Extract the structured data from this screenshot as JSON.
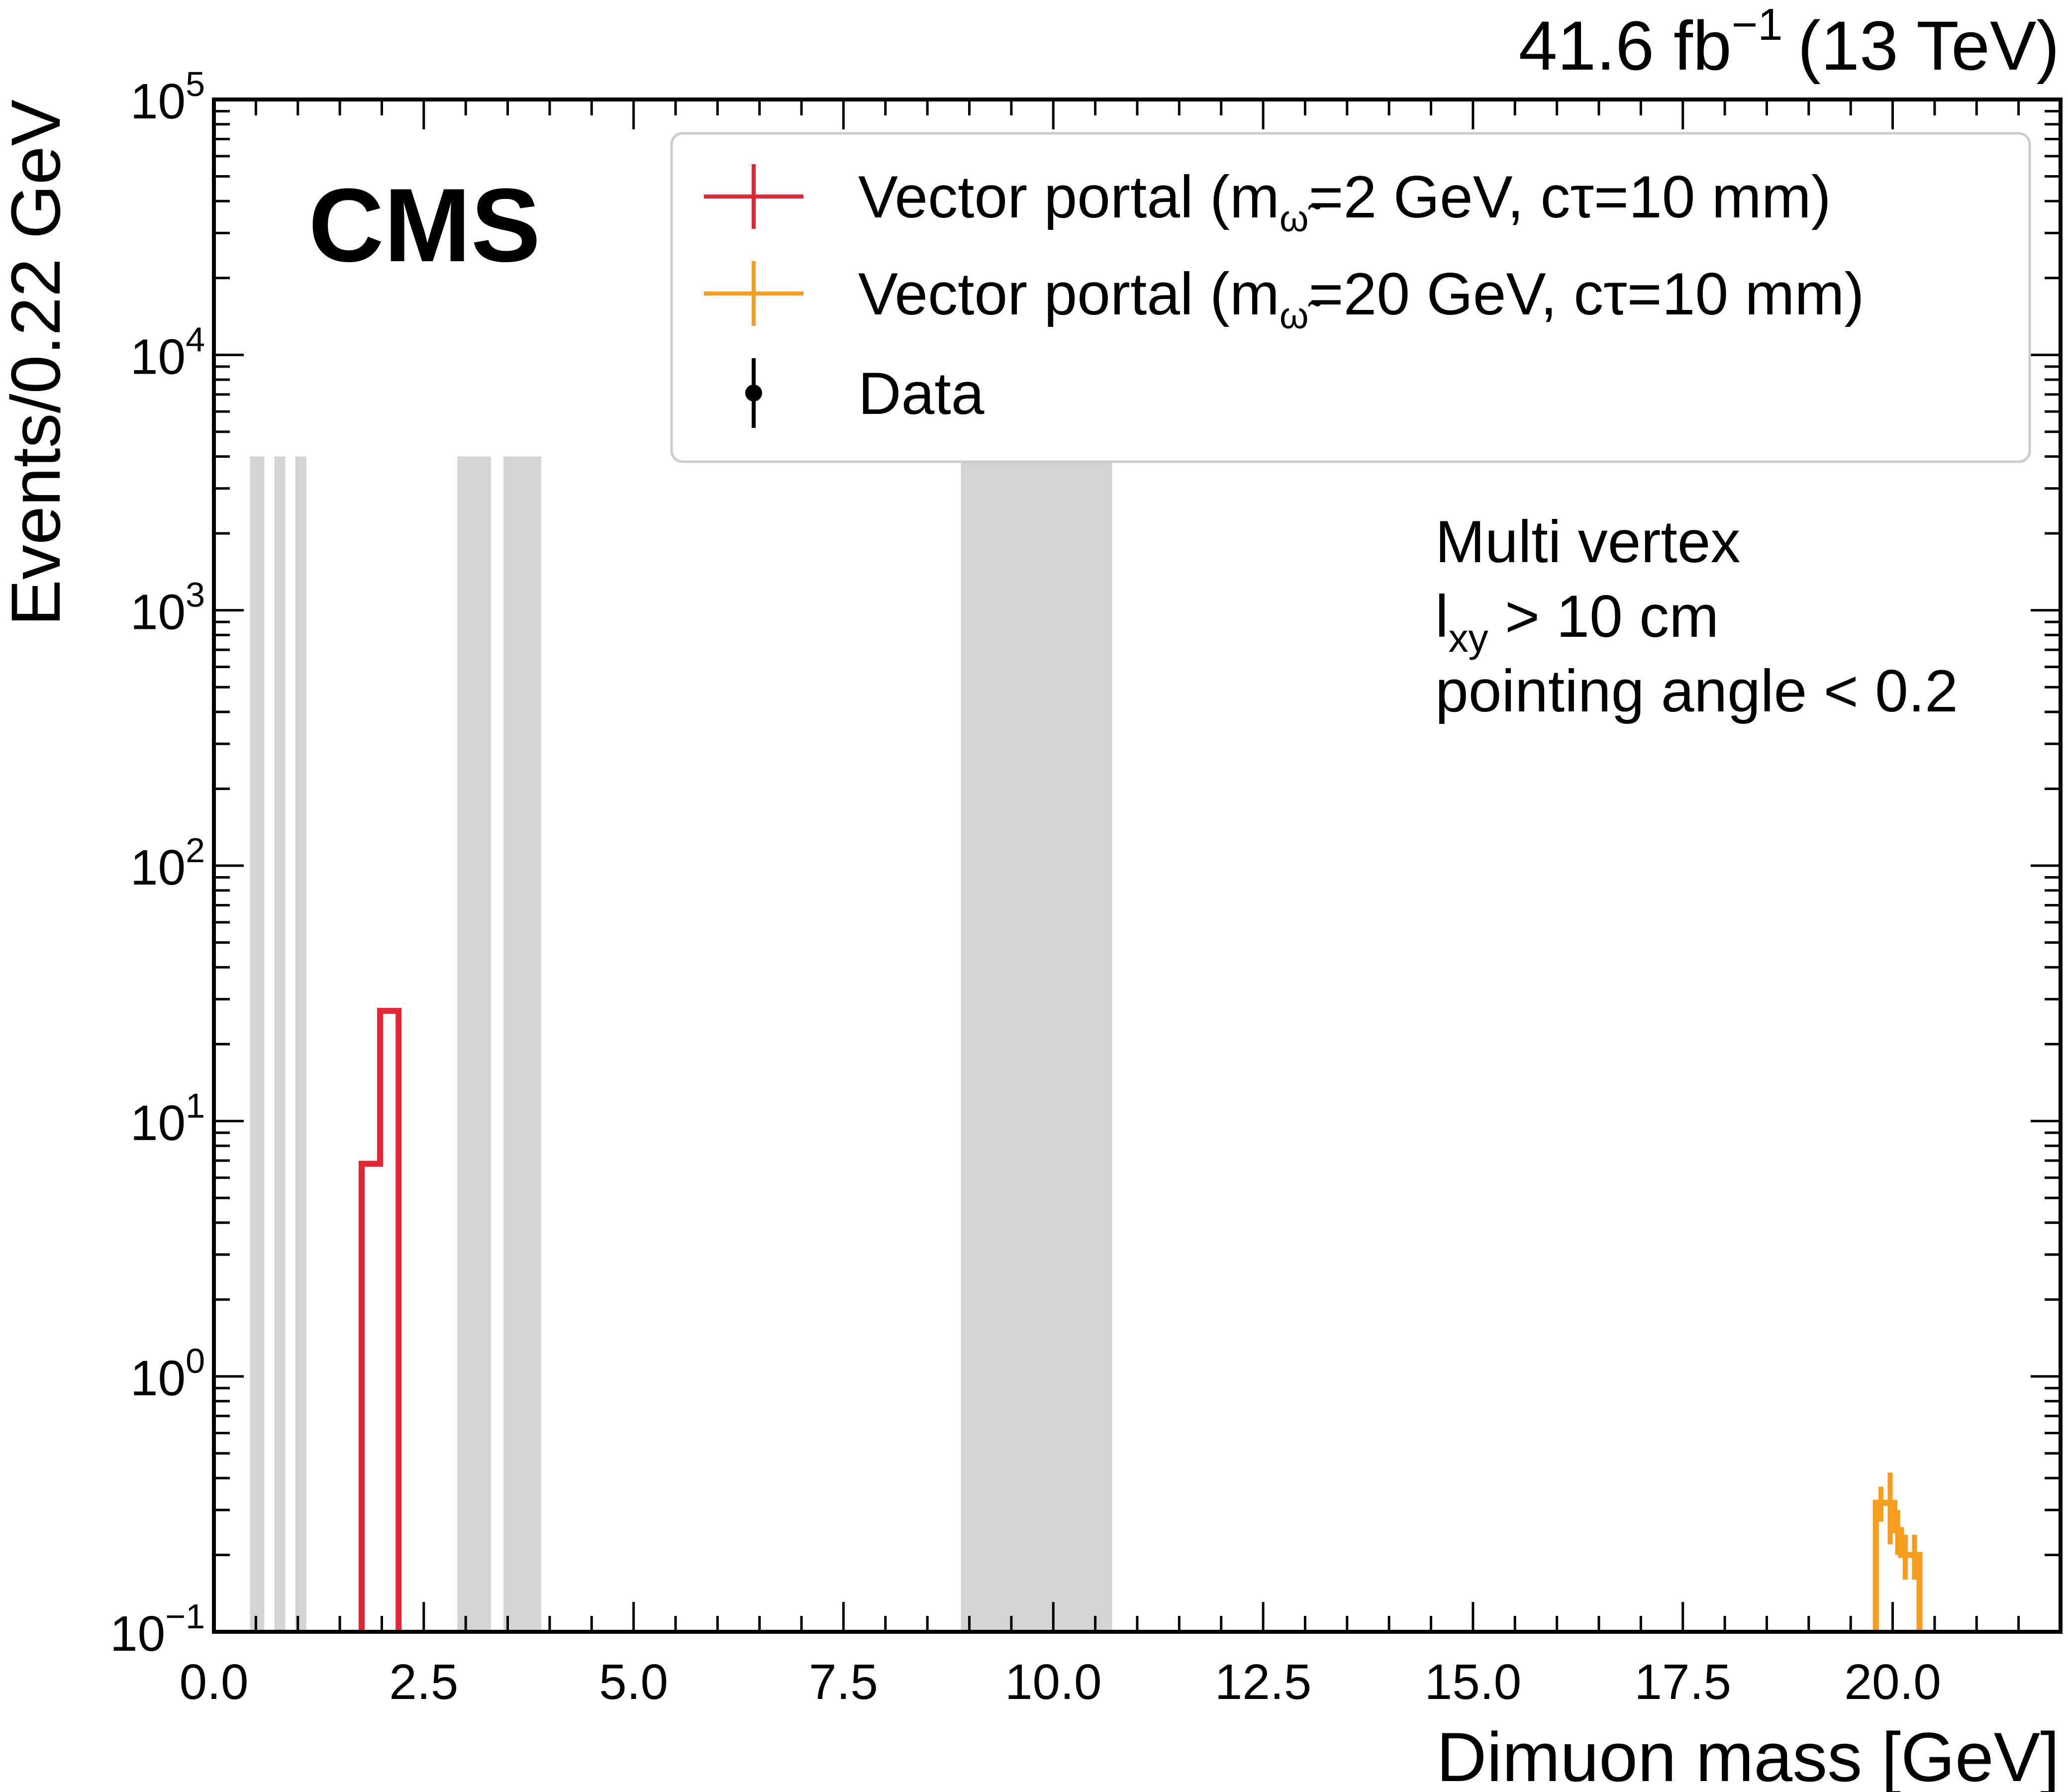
{
  "chart_data": {
    "type": "line",
    "experiment": "CMS",
    "lumi_label": "41.6 fb",
    "lumi_exponent": "−1",
    "energy_label": "(13 TeV)",
    "xlabel": "Dimuon mass [GeV]",
    "ylabel": "Events/0.22 GeV",
    "xlim": [
      0.0,
      22.0
    ],
    "ylim": [
      0.1,
      100000
    ],
    "yscale": "log",
    "x_ticks": [
      "0.0",
      "2.5",
      "5.0",
      "7.5",
      "10.0",
      "12.5",
      "15.0",
      "17.5",
      "20.0"
    ],
    "x_tick_values": [
      0,
      2.5,
      5,
      7.5,
      10,
      12.5,
      15,
      17.5,
      20
    ],
    "y_ticks": [
      {
        "base": "10",
        "exp": "−1",
        "value": 0.1
      },
      {
        "base": "10",
        "exp": "0",
        "value": 1
      },
      {
        "base": "10",
        "exp": "1",
        "value": 10
      },
      {
        "base": "10",
        "exp": "2",
        "value": 100
      },
      {
        "base": "10",
        "exp": "3",
        "value": 1000
      },
      {
        "base": "10",
        "exp": "4",
        "value": 10000
      },
      {
        "base": "10",
        "exp": "5",
        "value": 100000
      }
    ],
    "grid": false,
    "legend_position": "top-right",
    "legend": [
      {
        "pre": "Vector portal (m",
        "sub": "ω̃",
        "post": "=2 GeV, cτ=10 mm)",
        "color": "#e42536",
        "marker": "cross"
      },
      {
        "pre": "Vector portal (m",
        "sub": "ω̃",
        "post": "=20 GeV, cτ=10 mm)",
        "color": "#f89c20",
        "marker": "cross"
      },
      {
        "pre": "Data",
        "sub": "",
        "post": "",
        "color": "#000000",
        "marker": "point"
      }
    ],
    "annotation": {
      "line1": "Multi vertex",
      "line2_pre": "l",
      "line2_sub": "xy",
      "line2_post": " >  10 cm",
      "line3": "pointing angle < 0.2"
    },
    "masked_regions": {
      "color": "#d3d3d3",
      "y_top": 4000,
      "x_ranges": [
        [
          0.43,
          0.6
        ],
        [
          0.72,
          0.85
        ],
        [
          0.97,
          1.1
        ],
        [
          2.9,
          3.3
        ],
        [
          3.45,
          3.9
        ],
        [
          8.9,
          10.7
        ]
      ]
    },
    "series": [
      {
        "name": "Vector portal (mω̃=2 GeV, cτ=10 mm)",
        "color": "#e42536",
        "bin_edges": [
          1.76,
          1.98,
          2.2
        ],
        "values": [
          6.8,
          27
        ]
      },
      {
        "name": "Vector portal (mω̃=20 GeV, cτ=10 mm)",
        "color": "#f89c20",
        "bin_edges": [
          19.8,
          19.92,
          20.02,
          20.1,
          20.2,
          20.32
        ],
        "values": [
          0.32,
          0.32,
          0.25,
          0.2,
          0.2
        ],
        "errors": [
          0.05,
          0.1,
          0.05,
          0.04,
          0.04
        ]
      }
    ],
    "data_points": []
  }
}
